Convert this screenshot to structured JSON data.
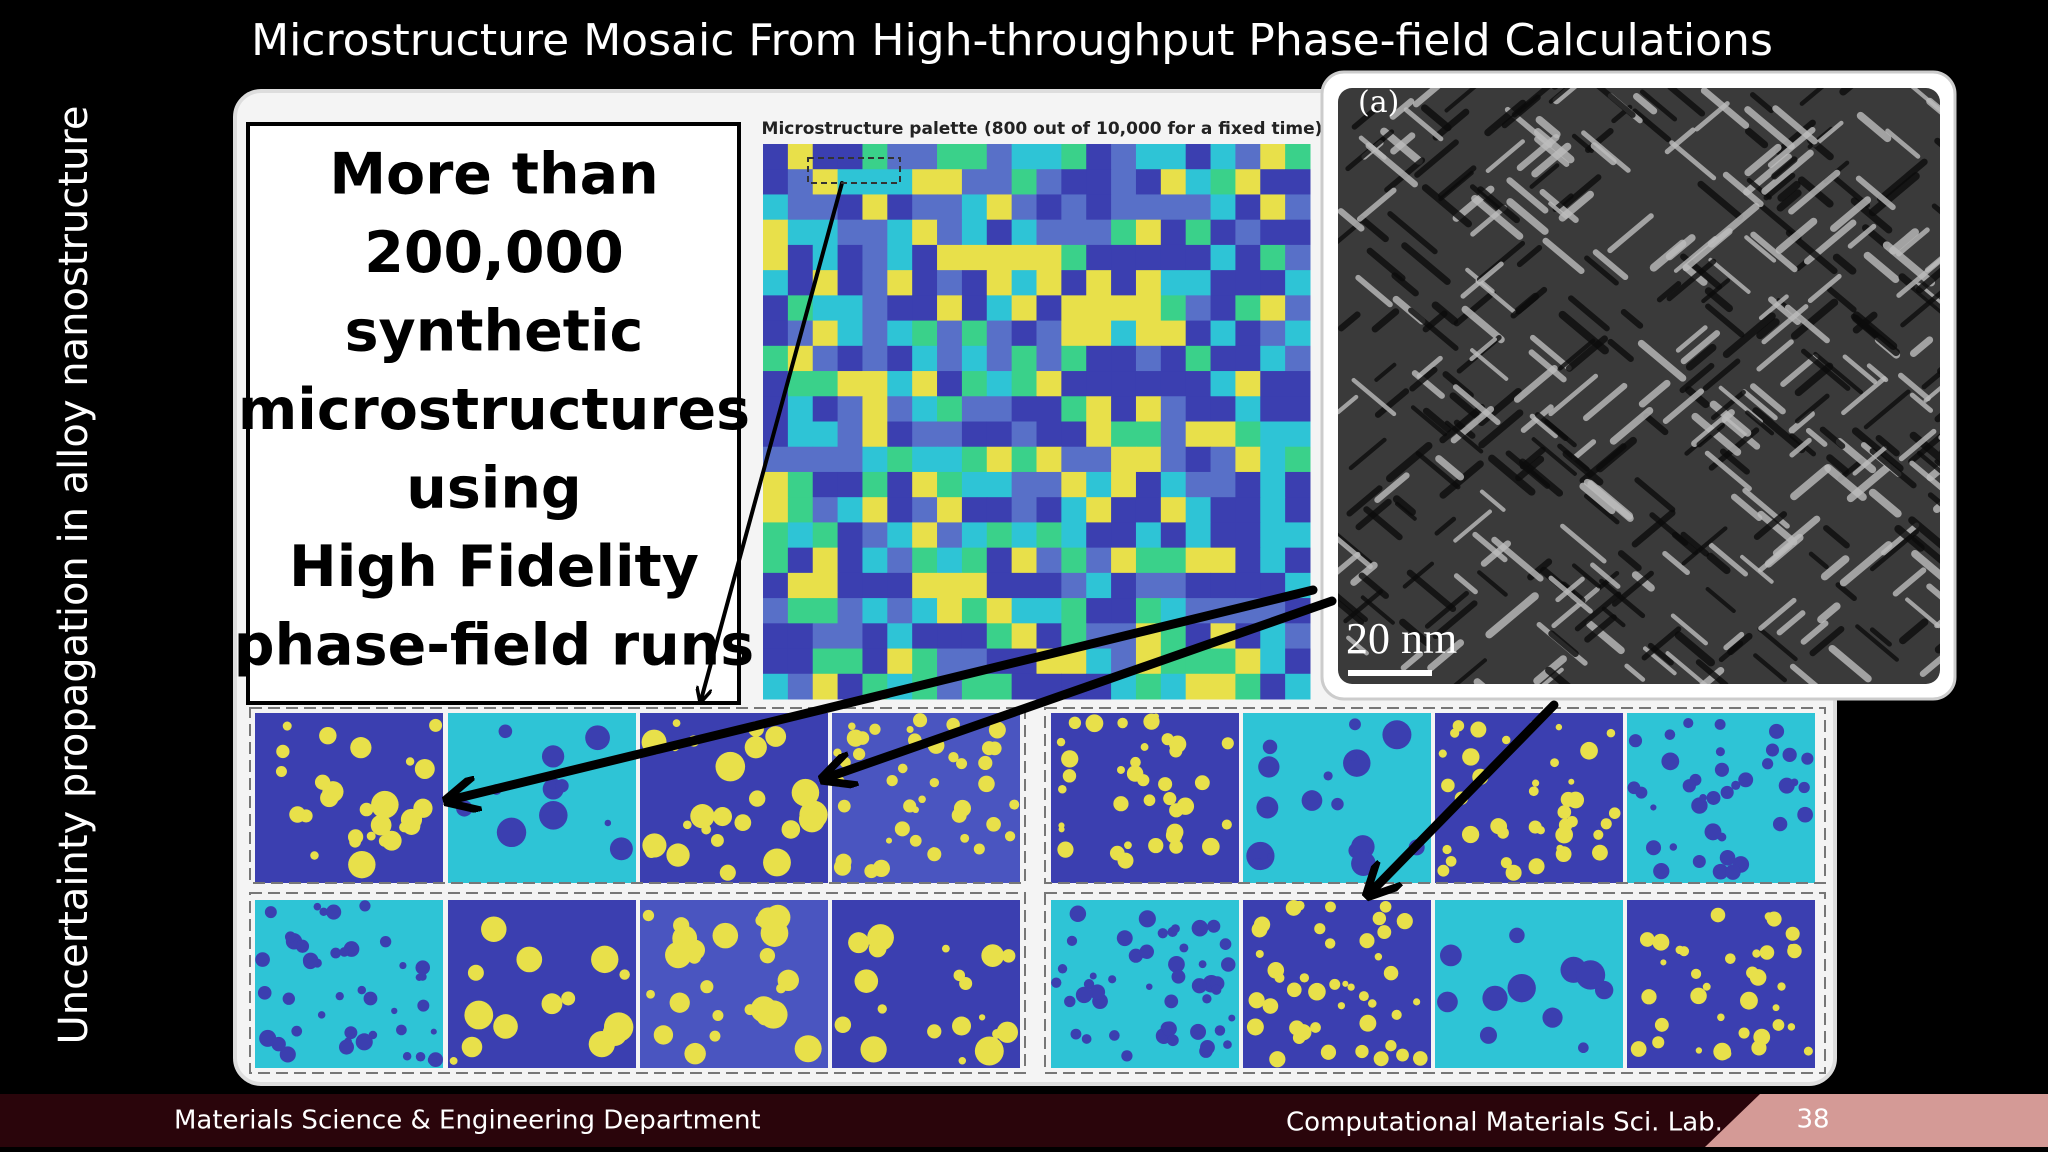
{
  "header": {
    "title": "Microstructure Mosaic From High-throughput Phase-field Calculations"
  },
  "side_label": "Uncertainty propagation in alloy nanostructure",
  "callout": {
    "lines": [
      "More than",
      "200,000",
      "synthetic",
      "microstructures",
      "using",
      "High Fidelity",
      "phase-field runs"
    ]
  },
  "palette_caption": "Microstructure palette (800 out of 10,000 for a fixed time)",
  "micrograph": {
    "panel_label": "(a)",
    "scale_bar": "20 nm"
  },
  "footer": {
    "department": "Materials Science & Engineering Department",
    "lab": "Computational Materials Sci. Lab.",
    "page_number": "38"
  }
}
